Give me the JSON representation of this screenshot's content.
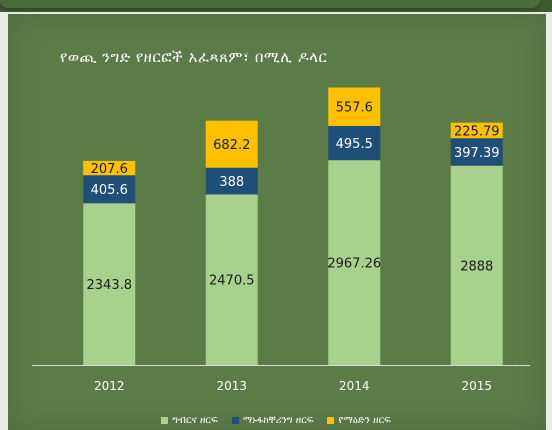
{
  "chart_data": {
    "type": "bar",
    "stacked": true,
    "title": "የወጪ ንግድ የዘርፎች አፈጻጸም፣ በሚሊ ዶላር",
    "categories": [
      "2012",
      "2013",
      "2014",
      "2015"
    ],
    "series": [
      {
        "name": "ግብርና ዘርፍ",
        "values": [
          2343.8,
          2470.5,
          2967.26,
          2888
        ],
        "labels": [
          "2343.8",
          "2470.5",
          "2967.26",
          "2888"
        ],
        "color": "#a9d18e"
      },
      {
        "name": "ማኑፋክቸሪንግ ዘርፍ",
        "values": [
          405.6,
          388,
          495.5,
          397.39
        ],
        "labels": [
          "405.6",
          "388",
          "495.5",
          "397.39"
        ],
        "color": "#1f4e79"
      },
      {
        "name": "የማዕድን ዘርፍ",
        "values": [
          207.6,
          682.2,
          557.6,
          225.79
        ],
        "labels": [
          "207.6",
          "682.2",
          "557.6",
          "225.79"
        ],
        "color": "#ffc000"
      }
    ],
    "xlabel": "",
    "ylabel": "",
    "ylim": [
      0,
      4100
    ],
    "grid": false,
    "legend": "bottom"
  },
  "colors": {
    "panel": "#5b7b47",
    "axis": "#d9d9d9",
    "label_dark": "#1a1a1a",
    "label_light": "#ffffff"
  }
}
